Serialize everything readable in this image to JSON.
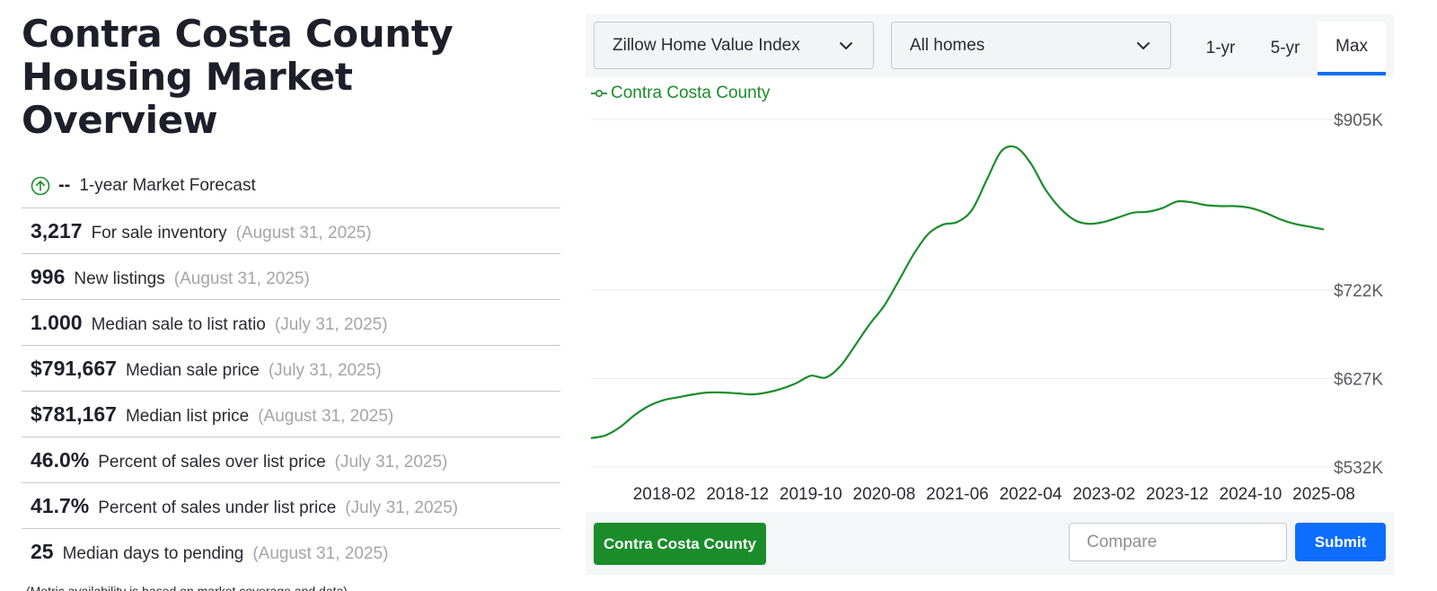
{
  "page": {
    "title_line1": "Contra Costa County",
    "title_line2": "Housing Market Overview"
  },
  "forecast": {
    "value": "--",
    "label": "1-year Market Forecast",
    "icon": "arrow-up-circle-icon"
  },
  "metrics": [
    {
      "value": "3,217",
      "label": "For sale inventory",
      "date": "(August 31, 2025)"
    },
    {
      "value": "996",
      "label": "New listings",
      "date": "(August 31, 2025)"
    },
    {
      "value": "1.000",
      "label": "Median sale to list ratio",
      "date": "(July 31, 2025)"
    },
    {
      "value": "$791,667",
      "label": "Median sale price",
      "date": "(July 31, 2025)"
    },
    {
      "value": "$781,167",
      "label": "Median list price",
      "date": "(August 31, 2025)"
    },
    {
      "value": "46.0%",
      "label": "Percent of sales over list price",
      "date": "(July 31, 2025)"
    },
    {
      "value": "41.7%",
      "label": "Percent of sales under list price",
      "date": "(July 31, 2025)"
    },
    {
      "value": "25",
      "label": "Median days to pending",
      "date": "(August 31, 2025)"
    }
  ],
  "footnote": "(Metric availability is based on market coverage and data)",
  "controls": {
    "metric_select": "Zillow Home Value Index",
    "home_type_select": "All homes",
    "ranges": [
      "1-yr",
      "5-yr",
      "Max"
    ],
    "active_range": "Max"
  },
  "bottom": {
    "region_button": "Contra Costa County",
    "compare_placeholder": "Compare",
    "submit_label": "Submit"
  },
  "colors": {
    "series": "#1a8d2a",
    "accent": "#0d6efd",
    "region_button": "#1a8d2a"
  },
  "chart_data": {
    "type": "line",
    "title": "",
    "xlabel": "",
    "ylabel": "",
    "legend": "top-left",
    "grid": true,
    "y_ticks": [
      "$905K",
      "$722K",
      "$627K",
      "$532K"
    ],
    "y_tick_values": [
      905000,
      722000,
      627000,
      532000
    ],
    "x_ticks": [
      "2018-02",
      "2018-12",
      "2019-10",
      "2020-08",
      "2021-06",
      "2022-04",
      "2023-02",
      "2023-12",
      "2024-10",
      "2025-08"
    ],
    "ylim": [
      532000,
      905000
    ],
    "series": [
      {
        "name": "Contra Costa County",
        "color": "#1a8d2a",
        "x": [
          "2017-04",
          "2017-06",
          "2017-08",
          "2017-10",
          "2017-12",
          "2018-02",
          "2018-04",
          "2018-06",
          "2018-08",
          "2018-10",
          "2018-12",
          "2019-02",
          "2019-04",
          "2019-06",
          "2019-08",
          "2019-10",
          "2019-12",
          "2020-02",
          "2020-04",
          "2020-06",
          "2020-08",
          "2020-10",
          "2020-12",
          "2021-02",
          "2021-04",
          "2021-06",
          "2021-08",
          "2021-10",
          "2021-12",
          "2022-02",
          "2022-04",
          "2022-06",
          "2022-08",
          "2022-10",
          "2022-12",
          "2023-02",
          "2023-04",
          "2023-06",
          "2023-08",
          "2023-10",
          "2023-12",
          "2024-02",
          "2024-04",
          "2024-06",
          "2024-08",
          "2024-10",
          "2024-12",
          "2025-02",
          "2025-04",
          "2025-06",
          "2025-08"
        ],
        "values": [
          563000,
          566000,
          575000,
          588000,
          598000,
          604000,
          607000,
          610000,
          612000,
          612000,
          611000,
          610000,
          612000,
          616000,
          622000,
          630000,
          628000,
          640000,
          662000,
          685000,
          705000,
          732000,
          760000,
          782000,
          792000,
          795000,
          808000,
          840000,
          871000,
          875000,
          858000,
          830000,
          810000,
          797000,
          793000,
          795000,
          800000,
          805000,
          806000,
          810000,
          817000,
          816000,
          813000,
          812000,
          812000,
          810000,
          805000,
          798000,
          793000,
          790000,
          787000
        ]
      }
    ]
  }
}
